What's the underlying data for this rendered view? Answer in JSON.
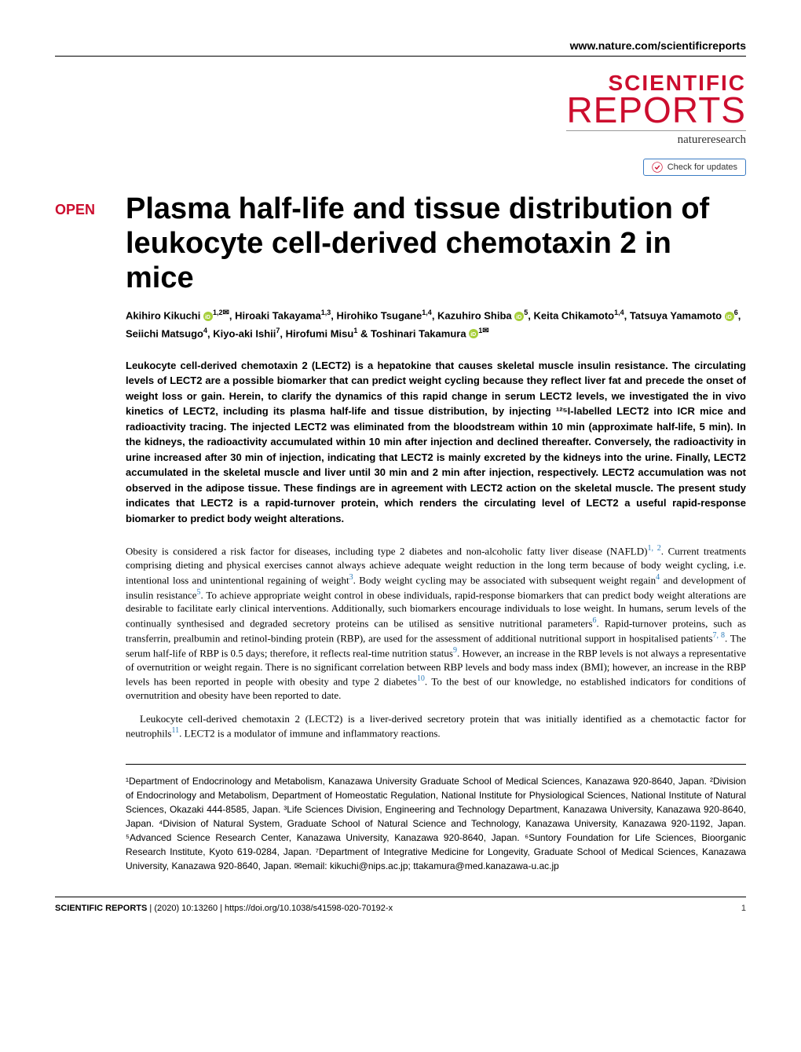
{
  "header": {
    "url": "www.nature.com/scientificreports"
  },
  "journal": {
    "name_top": "SCIENTIFIC",
    "name_bottom": "REPORTS",
    "publisher": "natureresearch",
    "check_updates": "Check for updates"
  },
  "article": {
    "open_label": "OPEN",
    "title": "Plasma half-life and tissue distribution of leukocyte cell-derived chemotaxin 2 in mice",
    "authors_html": "Akihiro Kikuchi|orcid|1,2|mail|, Hiroaki Takayama|1,3|, Hirohiko Tsugane|1,4|, Kazuhiro Shiba|orcid|5|, Keita Chikamoto|1,4|, Tatsuya Yamamoto|orcid|6|, Seiichi Matsugo|4|, Kiyo-aki Ishii|7|, Hirofumi Misu|1| & Toshinari Takamura|orcid|1|mail|",
    "authors": [
      {
        "name": "Akihiro Kikuchi",
        "orcid": true,
        "sup": "1,2",
        "mail": true
      },
      {
        "name": ", Hiroaki Takayama",
        "orcid": false,
        "sup": "1,3",
        "mail": false
      },
      {
        "name": ", Hirohiko Tsugane",
        "orcid": false,
        "sup": "1,4",
        "mail": false
      },
      {
        "name": ", Kazuhiro Shiba",
        "orcid": true,
        "sup": "5",
        "mail": false
      },
      {
        "name": ", Keita Chikamoto",
        "orcid": false,
        "sup": "1,4",
        "mail": false
      },
      {
        "name": ", Tatsuya Yamamoto",
        "orcid": true,
        "sup": "6",
        "mail": false
      },
      {
        "name": ", Seiichi Matsugo",
        "orcid": false,
        "sup": "4",
        "mail": false
      },
      {
        "name": ", Kiyo-aki Ishii",
        "orcid": false,
        "sup": "7",
        "mail": false
      },
      {
        "name": ", Hirofumi Misu",
        "orcid": false,
        "sup": "1",
        "mail": false
      },
      {
        "name": " & Toshinari Takamura",
        "orcid": true,
        "sup": "1",
        "mail": true
      }
    ],
    "abstract": "Leukocyte cell-derived chemotaxin 2 (LECT2) is a hepatokine that causes skeletal muscle insulin resistance. The circulating levels of LECT2 are a possible biomarker that can predict weight cycling because they reflect liver fat and precede the onset of weight loss or gain. Herein, to clarify the dynamics of this rapid change in serum LECT2 levels, we investigated the in vivo kinetics of LECT2, including its plasma half-life and tissue distribution, by injecting ¹²⁵I-labelled LECT2 into ICR mice and radioactivity tracing. The injected LECT2 was eliminated from the bloodstream within 10 min (approximate half-life, 5 min). In the kidneys, the radioactivity accumulated within 10 min after injection and declined thereafter. Conversely, the radioactivity in urine increased after 30 min of injection, indicating that LECT2 is mainly excreted by the kidneys into the urine. Finally, LECT2 accumulated in the skeletal muscle and liver until 30 min and 2 min after injection, respectively. LECT2 accumulation was not observed in the adipose tissue. These findings are in agreement with LECT2 action on the skeletal muscle. The present study indicates that LECT2 is a rapid-turnover protein, which renders the circulating level of LECT2 a useful rapid-response biomarker to predict body weight alterations.",
    "body_p1_a": "Obesity is considered a risk factor for diseases, including type 2 diabetes and non-alcoholic fatty liver disease (NAFLD)",
    "body_p1_ref1": "1, 2",
    "body_p1_b": ". Current treatments comprising dieting and physical exercises cannot always achieve adequate weight reduction in the long term because of body weight cycling, i.e. intentional loss and unintentional regaining of weight",
    "body_p1_ref2": "3",
    "body_p1_c": ". Body weight cycling may be associated with subsequent weight regain",
    "body_p1_ref3": "4",
    "body_p1_d": " and development of insulin resistance",
    "body_p1_ref4": "5",
    "body_p1_e": ". To achieve appropriate weight control in obese individuals, rapid-response biomarkers that can predict body weight alterations are desirable to facilitate early clinical interventions. Additionally, such biomarkers encourage individuals to lose weight. In humans, serum levels of the continually synthesised and degraded secretory proteins can be utilised as sensitive nutritional parameters",
    "body_p1_ref5": "6",
    "body_p1_f": ". Rapid-turnover proteins, such as transferrin, prealbumin and retinol-binding protein (RBP), are used for the assessment of additional nutritional support in hospitalised patients",
    "body_p1_ref6": "7, 8",
    "body_p1_g": ". The serum half-life of RBP is 0.5 days; therefore, it reflects real-time nutrition status",
    "body_p1_ref7": "9",
    "body_p1_h": ". However, an increase in the RBP levels is not always a representative of overnutrition or weight regain. There is no significant correlation between RBP levels and body mass index (BMI); however, an increase in the RBP levels has been reported in people with obesity and type 2 diabetes",
    "body_p1_ref8": "10",
    "body_p1_i": ". To the best of our knowledge, no established indicators for conditions of overnutrition and obesity have been reported to date.",
    "body_p2_a": "Leukocyte cell-derived chemotaxin 2 (LECT2) is a liver-derived secretory protein that was initially identified as a chemotactic factor for neutrophils",
    "body_p2_ref1": "11",
    "body_p2_b": ". LECT2 is a modulator of immune and inflammatory reactions.",
    "affiliations": "¹Department of Endocrinology and Metabolism, Kanazawa University Graduate School of Medical Sciences, Kanazawa 920-8640, Japan. ²Division of Endocrinology and Metabolism, Department of Homeostatic Regulation, National Institute for Physiological Sciences, National Institute of Natural Sciences, Okazaki 444-8585, Japan. ³Life Sciences Division, Engineering and Technology Department, Kanazawa University, Kanazawa 920-8640, Japan. ⁴Division of Natural System, Graduate School of Natural Science and Technology, Kanazawa University, Kanazawa 920-1192, Japan. ⁵Advanced Science Research Center, Kanazawa University, Kanazawa 920-8640, Japan. ⁶Suntory Foundation for Life Sciences, Bioorganic Research Institute, Kyoto 619-0284, Japan. ⁷Department of Integrative Medicine for Longevity, Graduate School of Medical Sciences, Kanazawa University, Kanazawa 920-8640, Japan. ✉email: kikuchi@nips.ac.jp; ttakamura@med.kanazawa-u.ac.jp"
  },
  "footer": {
    "journal": "SCIENTIFIC REPORTS",
    "citation": "(2020) 10:13260",
    "doi": "| https://doi.org/10.1038/s41598-020-70192-x",
    "page": "1"
  },
  "colors": {
    "brand_red": "#cc0d2e",
    "link_blue": "#2b7bb9",
    "orcid_green": "#a6ce39",
    "update_border": "#3b7cc4"
  }
}
